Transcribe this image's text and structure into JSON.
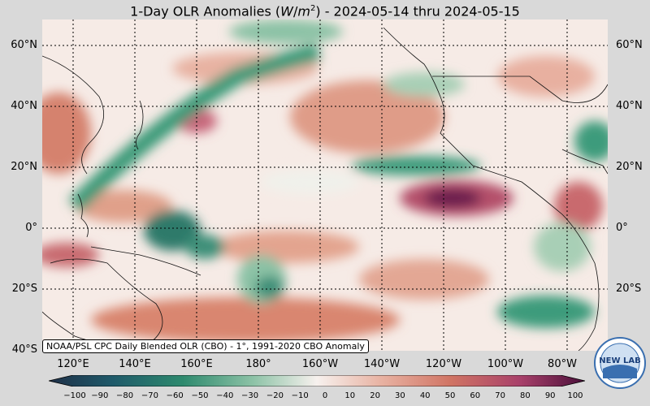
{
  "title_parts": {
    "pre": "1-Day OLR Anomalies (",
    "unit_w": "W",
    "unit_slash": "/",
    "unit_m": "m",
    "unit_exp": "2",
    "post": ") - 2024-05-14 thru 2024-05-15"
  },
  "lat_labels": [
    "60°N",
    "40°N",
    "20°N",
    "0°",
    "20°S",
    "40°S"
  ],
  "lon_labels": [
    "120°E",
    "140°E",
    "160°E",
    "180°",
    "160°W",
    "140°W",
    "120°W",
    "100°W",
    "80°W"
  ],
  "credit": "NOAA/PSL CPC Daily Blended OLR (CBO) - 1°, 1991-2020 CBO Anomaly",
  "colorbar_ticks": [
    "−100",
    "−90",
    "−80",
    "−70",
    "−60",
    "−50",
    "−40",
    "−30",
    "−20",
    "−10",
    "0",
    "10",
    "20",
    "30",
    "40",
    "50",
    "60",
    "70",
    "80",
    "90",
    "100"
  ],
  "logo_text": "NEW LAB",
  "colors": {
    "negative_max": "#1f3b55",
    "negative_mid": "#2e8a6e",
    "neutral": "#f7f1ee",
    "positive_mid": "#d98a74",
    "positive_max": "#5a1244"
  },
  "legend_range": [
    -100,
    100
  ],
  "map_extent": {
    "lon": [
      110,
      290
    ],
    "lat": [
      -40,
      68
    ]
  }
}
